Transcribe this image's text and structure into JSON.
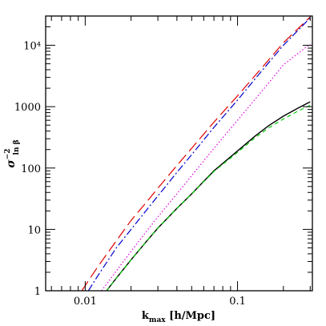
{
  "chart_data": {
    "type": "line",
    "xlabel": {
      "main": "k",
      "sub": "max",
      "rest": " [h/Mpc]"
    },
    "ylabel": {
      "main": "σ",
      "sub": "ln β",
      "sup": "−2"
    },
    "x_scale": "log",
    "y_scale": "log",
    "xlim": [
      0.0055,
      0.31
    ],
    "ylim": [
      1,
      30000
    ],
    "x_ticks": [
      {
        "value": 0.01,
        "label": "0.01"
      },
      {
        "value": 0.1,
        "label": "0.1"
      }
    ],
    "y_ticks": [
      {
        "value": 1,
        "label": "1"
      },
      {
        "value": 10,
        "label": "10"
      },
      {
        "value": 100,
        "label": "100"
      },
      {
        "value": 1000,
        "label": "1000"
      },
      {
        "value": 10000,
        "label": "10⁴"
      }
    ],
    "grid": false,
    "series": [
      {
        "color": "#e00000",
        "dash": "long-dash",
        "x": [
          0.0095,
          0.012,
          0.016,
          0.02,
          0.025,
          0.03,
          0.04,
          0.05,
          0.07,
          0.1,
          0.15,
          0.2,
          0.3
        ],
        "y": [
          1,
          2.4,
          6.5,
          14,
          27,
          47,
          110,
          210,
          560,
          1500,
          4800,
          11000,
          29000
        ]
      },
      {
        "color": "#0000cc",
        "dash": "dash-dot",
        "x": [
          0.0105,
          0.012,
          0.016,
          0.02,
          0.025,
          0.03,
          0.04,
          0.05,
          0.07,
          0.1,
          0.15,
          0.2,
          0.3
        ],
        "y": [
          1,
          1.7,
          5,
          10,
          20,
          35,
          85,
          165,
          460,
          1280,
          4300,
          10000,
          28000
        ]
      },
      {
        "color": "#dd00dd",
        "dash": "dotted",
        "x": [
          0.0128,
          0.016,
          0.02,
          0.025,
          0.03,
          0.04,
          0.05,
          0.07,
          0.1,
          0.15,
          0.2,
          0.3
        ],
        "y": [
          1,
          2.1,
          4.4,
          9,
          16,
          38,
          75,
          210,
          600,
          2000,
          4800,
          10500
        ]
      },
      {
        "color": "#000000",
        "dash": "solid",
        "x": [
          0.0138,
          0.016,
          0.02,
          0.025,
          0.03,
          0.04,
          0.05,
          0.07,
          0.1,
          0.13,
          0.16,
          0.2,
          0.25,
          0.3
        ],
        "y": [
          1,
          1.6,
          3.2,
          6.2,
          10.5,
          22,
          38,
          90,
          190,
          330,
          490,
          700,
          950,
          1200
        ]
      },
      {
        "color": "#00cc00",
        "dash": "short-dash",
        "x": [
          0.0138,
          0.016,
          0.02,
          0.025,
          0.03,
          0.04,
          0.05,
          0.07,
          0.1,
          0.13,
          0.16,
          0.2,
          0.25,
          0.3
        ],
        "y": [
          1,
          1.6,
          3.2,
          6.2,
          10.5,
          22,
          38,
          88,
          180,
          310,
          450,
          630,
          850,
          1050
        ]
      }
    ]
  }
}
